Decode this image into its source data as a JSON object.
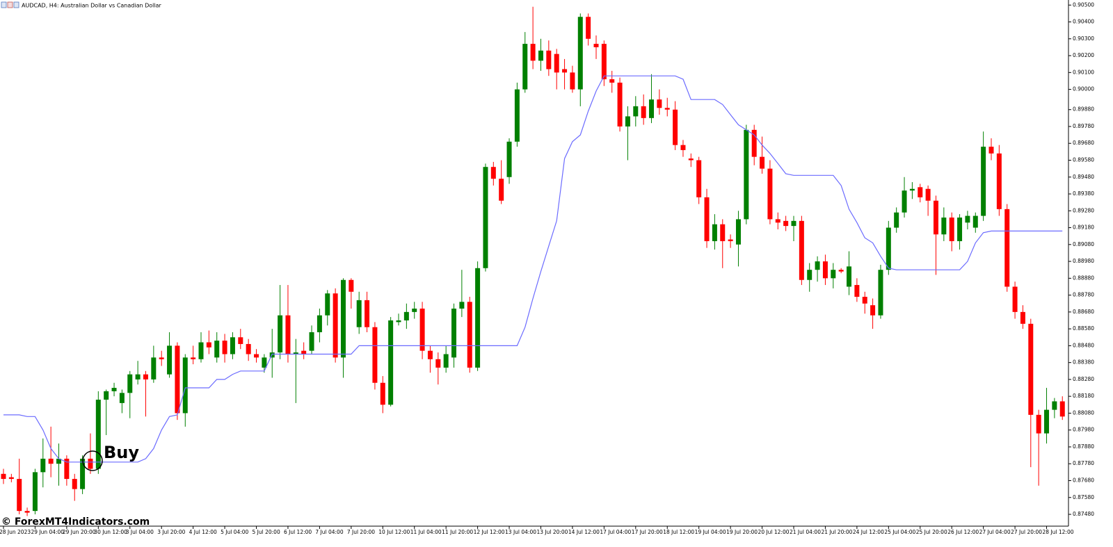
{
  "chart_data": {
    "type": "candlestick",
    "title": "AUDCAD, H4:  Australian Dollar vs Canadian Dollar",
    "watermark": "© ForexMT4Indicators.com",
    "annotation": "Buy",
    "up_color": "#008000",
    "down_color": "#ff0000",
    "ylim": [
      0.8741,
      0.9053
    ],
    "yticks": [
      {
        "value": 0.905,
        "label": "0.90500"
      },
      {
        "value": 0.904,
        "label": "0.90400"
      },
      {
        "value": 0.903,
        "label": "0.90300"
      },
      {
        "value": 0.902,
        "label": "0.90200"
      },
      {
        "value": 0.901,
        "label": "0.90100"
      },
      {
        "value": 0.9,
        "label": "0.90000"
      },
      {
        "value": 0.8988,
        "label": "0.89880"
      },
      {
        "value": 0.8978,
        "label": "0.89780"
      },
      {
        "value": 0.8968,
        "label": "0.89680"
      },
      {
        "value": 0.8958,
        "label": "0.89580"
      },
      {
        "value": 0.8948,
        "label": "0.89480"
      },
      {
        "value": 0.8938,
        "label": "0.89380"
      },
      {
        "value": 0.8928,
        "label": "0.89280"
      },
      {
        "value": 0.8918,
        "label": "0.89180"
      },
      {
        "value": 0.8908,
        "label": "0.89080"
      },
      {
        "value": 0.8898,
        "label": "0.88980"
      },
      {
        "value": 0.8888,
        "label": "0.88880"
      },
      {
        "value": 0.8878,
        "label": "0.88780"
      },
      {
        "value": 0.8868,
        "label": "0.88680"
      },
      {
        "value": 0.8858,
        "label": "0.88580"
      },
      {
        "value": 0.8848,
        "label": "0.88480"
      },
      {
        "value": 0.8838,
        "label": "0.88380"
      },
      {
        "value": 0.8828,
        "label": "0.88280"
      },
      {
        "value": 0.8818,
        "label": "0.88180"
      },
      {
        "value": 0.8808,
        "label": "0.88080"
      },
      {
        "value": 0.8798,
        "label": "0.87980"
      },
      {
        "value": 0.8788,
        "label": "0.87880"
      },
      {
        "value": 0.8778,
        "label": "0.87780"
      },
      {
        "value": 0.8768,
        "label": "0.87680"
      },
      {
        "value": 0.8758,
        "label": "0.87580"
      },
      {
        "value": 0.8748,
        "label": "0.87480"
      }
    ],
    "categories": [
      "28 Jun 2023",
      null,
      null,
      null,
      "29 Jun 04:00",
      null,
      null,
      null,
      "29 Jun 20:00",
      null,
      null,
      null,
      "30 Jun 12:00",
      null,
      null,
      null,
      "3 Jul 04:00",
      null,
      null,
      null,
      "3 Jul 20:00",
      null,
      null,
      null,
      "4 Jul 12:00",
      null,
      null,
      null,
      "5 Jul 04:00",
      null,
      null,
      null,
      "5 Jul 20:00",
      null,
      null,
      null,
      "6 Jul 12:00",
      null,
      null,
      null,
      "7 Jul 04:00",
      null,
      null,
      null,
      "7 Jul 20:00",
      null,
      null,
      null,
      "10 Jul 12:00",
      null,
      null,
      null,
      "11 Jul 04:00",
      null,
      null,
      null,
      "11 Jul 20:00",
      null,
      null,
      null,
      "12 Jul 12:00",
      null,
      null,
      null,
      "13 Jul 04:00",
      null,
      null,
      null,
      "13 Jul 20:00",
      null,
      null,
      null,
      "14 Jul 12:00",
      null,
      null,
      null,
      "17 Jul 04:00",
      null,
      null,
      null,
      "17 Jul 20:00",
      null,
      null,
      null,
      "18 Jul 12:00",
      null,
      null,
      null,
      "19 Jul 04:00",
      null,
      null,
      null,
      "19 Jul 20:00",
      null,
      null,
      null,
      "20 Jul 12:00",
      null,
      null,
      null,
      "21 Jul 04:00",
      null,
      null,
      null,
      "21 Jul 20:00",
      null,
      null,
      null,
      "24 Jul 12:00",
      null,
      null,
      null,
      "25 Jul 04:00",
      null,
      null,
      null,
      "25 Jul 20:00",
      null,
      null,
      null,
      "26 Jul 12:00",
      null,
      null,
      null,
      "27 Jul 04:00",
      null,
      null,
      null,
      "27 Jul 20:00",
      null,
      null,
      null,
      "28 Jul 12:00",
      null,
      null
    ],
    "open": [
      0.8772,
      0.877,
      0.8769,
      0.875,
      0.875,
      0.8773,
      0.8781,
      0.8778,
      0.8781,
      0.8769,
      0.8763,
      0.8781,
      0.8775,
      0.8816,
      0.8821,
      0.8814,
      0.882,
      0.8828,
      0.8831,
      0.8828,
      0.8841,
      0.8831,
      0.8848,
      0.8808,
      0.8841,
      0.884,
      0.885,
      0.8841,
      0.8851,
      0.8843,
      0.8853,
      0.8849,
      0.8843,
      0.8835,
      0.8841,
      0.8844,
      0.8866,
      0.8843,
      0.8845,
      0.8845,
      0.8856,
      0.8866,
      0.8879,
      0.8841,
      0.8887,
      0.8859,
      0.8875,
      0.8859,
      0.8826,
      0.8813,
      0.8862,
      0.8863,
      0.8868,
      0.887,
      0.8845,
      0.884,
      0.8835,
      0.8841,
      0.887,
      0.8874,
      0.8835,
      0.8894,
      0.8954,
      0.8947,
      0.8948,
      0.8969,
      0.9,
      0.9027,
      0.9017,
      0.9023,
      0.9021,
      0.9012,
      0.901,
      0.9,
      0.9043,
      0.9027,
      0.9027,
      0.9006,
      0.9004,
      0.8978,
      0.8984,
      0.899,
      0.8983,
      0.8994,
      0.8989,
      0.8988,
      0.8967,
      0.8959,
      0.8958,
      0.8936,
      0.891,
      0.892,
      0.8911,
      0.8908,
      0.8923,
      0.8976,
      0.896,
      0.8953,
      0.8923,
      0.8922,
      0.8919,
      0.8922,
      0.8887,
      0.8893,
      0.8898,
      0.8888,
      0.8893,
      0.8883,
      0.8884,
      0.8877,
      0.8872,
      0.8866,
      0.8893,
      0.8918,
      0.8927,
      0.894,
      0.8942,
      0.8941,
      0.8934,
      0.8914,
      0.8924,
      0.891,
      0.8921,
      0.8918,
      0.8925,
      0.8966,
      0.8962,
      0.8929,
      0.8883,
      0.8868,
      0.8861,
      0.8807,
      0.8796,
      0.881,
      0.8815
    ],
    "high": [
      0.8775,
      0.8772,
      0.8781,
      0.8752,
      0.8775,
      0.8793,
      0.88,
      0.879,
      0.8783,
      0.8772,
      0.8783,
      0.8796,
      0.8821,
      0.8822,
      0.8826,
      0.8822,
      0.8833,
      0.8839,
      0.8833,
      0.8848,
      0.8845,
      0.8856,
      0.885,
      0.8843,
      0.8848,
      0.8856,
      0.8857,
      0.8856,
      0.8855,
      0.8856,
      0.8858,
      0.8852,
      0.8846,
      0.8843,
      0.8858,
      0.8884,
      0.8884,
      0.8852,
      0.885,
      0.886,
      0.887,
      0.8881,
      0.8882,
      0.8888,
      0.8888,
      0.888,
      0.888,
      0.8862,
      0.883,
      0.8865,
      0.8867,
      0.8873,
      0.8874,
      0.8874,
      0.8848,
      0.8844,
      0.8848,
      0.8873,
      0.8893,
      0.8877,
      0.8898,
      0.8956,
      0.8957,
      0.8958,
      0.8971,
      0.9004,
      0.9034,
      0.9049,
      0.903,
      0.9029,
      0.9024,
      0.9018,
      0.9014,
      0.9045,
      0.9045,
      0.9032,
      0.9029,
      0.9011,
      0.9007,
      0.899,
      0.8996,
      0.8997,
      0.9009,
      0.9,
      0.8995,
      0.8993,
      0.897,
      0.8962,
      0.896,
      0.8941,
      0.8926,
      0.8923,
      0.8914,
      0.8928,
      0.8979,
      0.8979,
      0.8972,
      0.8958,
      0.8927,
      0.8925,
      0.8925,
      0.8925,
      0.8897,
      0.8901,
      0.8902,
      0.8897,
      0.8894,
      0.8904,
      0.8888,
      0.888,
      0.8876,
      0.8896,
      0.8922,
      0.893,
      0.8948,
      0.8945,
      0.8944,
      0.8943,
      0.8937,
      0.893,
      0.8927,
      0.8926,
      0.8928,
      0.8927,
      0.8975,
      0.8971,
      0.8967,
      0.8932,
      0.8886,
      0.8872,
      0.8864,
      0.881,
      0.8823,
      0.8817,
      0.8818
    ],
    "low": [
      0.8766,
      0.8767,
      0.8748,
      0.8747,
      0.8748,
      0.8764,
      0.877,
      0.8765,
      0.8765,
      0.8756,
      0.876,
      0.8772,
      0.8772,
      0.8795,
      0.8818,
      0.8808,
      0.8805,
      0.8825,
      0.8806,
      0.8826,
      0.8836,
      0.8829,
      0.8804,
      0.88,
      0.8837,
      0.8838,
      0.8843,
      0.8838,
      0.8838,
      0.884,
      0.8846,
      0.8839,
      0.8838,
      0.8832,
      0.8829,
      0.884,
      0.8838,
      0.8814,
      0.884,
      0.8843,
      0.885,
      0.886,
      0.8838,
      0.8829,
      0.887,
      0.8855,
      0.8856,
      0.8822,
      0.8808,
      0.8812,
      0.886,
      0.8858,
      0.8864,
      0.884,
      0.8832,
      0.8825,
      0.8832,
      0.8835,
      0.8865,
      0.8832,
      0.8833,
      0.8892,
      0.8943,
      0.8932,
      0.8944,
      0.8966,
      0.8998,
      0.9012,
      0.9011,
      0.9008,
      0.9,
      0.9,
      0.8998,
      0.899,
      0.9026,
      0.9018,
      0.9002,
      0.8998,
      0.8975,
      0.8958,
      0.8978,
      0.8979,
      0.898,
      0.8985,
      0.8984,
      0.8964,
      0.896,
      0.8954,
      0.8932,
      0.8906,
      0.8905,
      0.8894,
      0.8906,
      0.8895,
      0.892,
      0.8955,
      0.895,
      0.892,
      0.8917,
      0.8916,
      0.891,
      0.8884,
      0.888,
      0.8886,
      0.8884,
      0.8882,
      0.8891,
      0.8878,
      0.8874,
      0.8867,
      0.8858,
      0.8864,
      0.889,
      0.8915,
      0.8924,
      0.8935,
      0.8933,
      0.8925,
      0.889,
      0.891,
      0.8904,
      0.8905,
      0.8917,
      0.8915,
      0.8922,
      0.8958,
      0.8925,
      0.888,
      0.8864,
      0.8858,
      0.8776,
      0.8765,
      0.879,
      0.8805,
      0.8804
    ],
    "close": [
      0.8769,
      0.8769,
      0.875,
      0.8749,
      0.8773,
      0.8781,
      0.8778,
      0.8781,
      0.8769,
      0.8763,
      0.8781,
      0.8775,
      0.8816,
      0.8821,
      0.8823,
      0.882,
      0.8831,
      0.8831,
      0.8828,
      0.8841,
      0.884,
      0.8848,
      0.8808,
      0.8841,
      0.884,
      0.885,
      0.8847,
      0.8851,
      0.8843,
      0.8853,
      0.8849,
      0.8843,
      0.8841,
      0.8841,
      0.8844,
      0.8866,
      0.8843,
      0.8844,
      0.8843,
      0.8856,
      0.8866,
      0.8879,
      0.8841,
      0.8887,
      0.888,
      0.8875,
      0.8859,
      0.8826,
      0.8813,
      0.8863,
      0.8863,
      0.8868,
      0.887,
      0.8845,
      0.884,
      0.8835,
      0.8843,
      0.887,
      0.8874,
      0.8835,
      0.8894,
      0.8954,
      0.8947,
      0.8934,
      0.8969,
      0.9,
      0.9027,
      0.9017,
      0.9023,
      0.9012,
      0.901,
      0.901,
      0.9,
      0.9043,
      0.903,
      0.9025,
      0.9006,
      0.9004,
      0.8978,
      0.8984,
      0.899,
      0.8983,
      0.8994,
      0.8989,
      0.8988,
      0.8967,
      0.8964,
      0.8958,
      0.8936,
      0.891,
      0.892,
      0.891,
      0.891,
      0.8923,
      0.8976,
      0.896,
      0.8953,
      0.8923,
      0.8921,
      0.8919,
      0.8922,
      0.8887,
      0.8893,
      0.8898,
      0.8888,
      0.8893,
      0.8892,
      0.8895,
      0.8877,
      0.8873,
      0.8866,
      0.8893,
      0.8918,
      0.8927,
      0.894,
      0.8941,
      0.8936,
      0.8934,
      0.8914,
      0.8924,
      0.891,
      0.8924,
      0.8925,
      0.8925,
      0.8966,
      0.8962,
      0.8929,
      0.8883,
      0.8868,
      0.8861,
      0.8807,
      0.8796,
      0.881,
      0.8815,
      0.8806
    ],
    "line": {
      "color": "#6b6bff",
      "values": [
        0.8807,
        0.8807,
        0.8807,
        0.8806,
        0.8806,
        0.8798,
        0.8787,
        0.8781,
        0.8779,
        0.8779,
        0.8779,
        0.8779,
        0.8779,
        0.8779,
        0.8779,
        0.8779,
        0.8779,
        0.8779,
        0.8781,
        0.8787,
        0.8798,
        0.8806,
        0.8807,
        0.8823,
        0.8823,
        0.8823,
        0.8823,
        0.8828,
        0.8828,
        0.8831,
        0.8833,
        0.8833,
        0.8833,
        0.8833,
        0.8843,
        0.8843,
        0.8843,
        0.8843,
        0.8843,
        0.8843,
        0.8843,
        0.8843,
        0.8843,
        0.8843,
        0.8843,
        0.8848,
        0.8848,
        0.8848,
        0.8848,
        0.8848,
        0.8848,
        0.8848,
        0.8848,
        0.8848,
        0.8848,
        0.8848,
        0.8848,
        0.8848,
        0.8848,
        0.8848,
        0.8848,
        0.8848,
        0.8848,
        0.8848,
        0.8848,
        0.8848,
        0.8859,
        0.8876,
        0.8892,
        0.8907,
        0.8922,
        0.8959,
        0.8969,
        0.8973,
        0.8987,
        0.8999,
        0.9008,
        0.9008,
        0.9008,
        0.9008,
        0.9008,
        0.9008,
        0.9008,
        0.9008,
        0.9008,
        0.9008,
        0.9006,
        0.8994,
        0.8994,
        0.8994,
        0.8994,
        0.8991,
        0.8985,
        0.8979,
        0.8976,
        0.8973,
        0.8967,
        0.8962,
        0.8956,
        0.895,
        0.8949,
        0.8949,
        0.8949,
        0.8949,
        0.8949,
        0.8949,
        0.8943,
        0.8929,
        0.8921,
        0.8912,
        0.8909,
        0.8901,
        0.8894,
        0.8893,
        0.8893,
        0.8893,
        0.8893,
        0.8893,
        0.8893,
        0.8893,
        0.8893,
        0.8893,
        0.8898,
        0.8909,
        0.8915,
        0.8916,
        0.8916,
        0.8916,
        0.8916,
        0.8916,
        0.8916,
        0.8916,
        0.8916,
        0.8916,
        0.8916
      ]
    }
  }
}
